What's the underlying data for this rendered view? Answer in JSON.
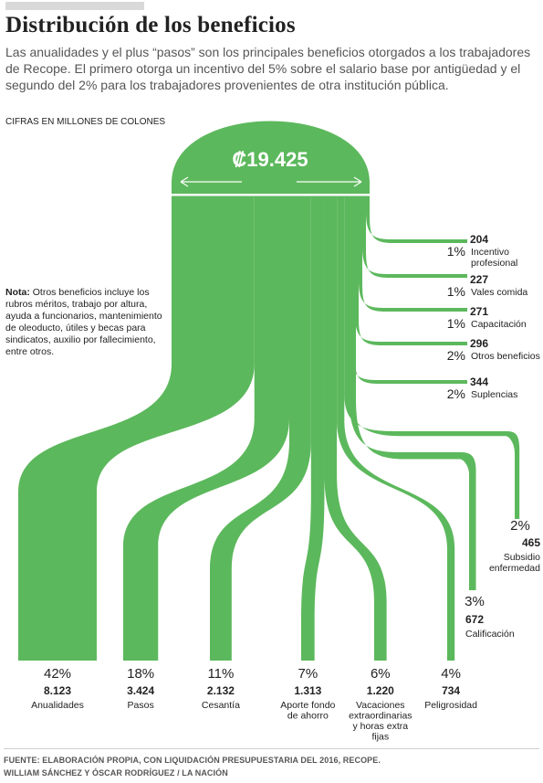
{
  "title": "Distribución de los beneficios",
  "subtitle": "Las anualidades y el plus “pasos”    son los principales beneficios otorgados a los trabajadores de Recope. El primero otorga un incentivo del 5% sobre el salario base por antigüedad y el segundo del 2% para los trabajadores provenientes de otra institución pública.",
  "units": "CIFRAS EN MILLONES DE COLONES",
  "note": {
    "label": "Nota:",
    "text": " Otros beneficios incluye los rubros méritos, trabajo por altura, ayuda a funcionarios, mantenimiento de oleoducto, útiles y becas para sindicatos, auxilio por fallecimiento, entre otros."
  },
  "source": {
    "line1": "FUENTE: ELABORACIÓN PROPIA, CON LIQUIDACIÓN PRESUPUESTARIA DEL 2016, RECOPE.",
    "line2": "WILLIAM SÁNCHEZ Y ÓSCAR RODRÍGUEZ / LA NACIÓN"
  },
  "colors": {
    "flow": "#5cb85c",
    "text": "#222222",
    "muted": "#555555"
  },
  "chart_data": {
    "type": "sankey",
    "total": {
      "value": 19425,
      "label": "₡19.425"
    },
    "bottom_items": [
      {
        "name": "Anualidades",
        "value": 8123,
        "value_label": "8.123",
        "pct": "42%"
      },
      {
        "name": "Pasos",
        "value": 3424,
        "value_label": "3.424",
        "pct": "18%"
      },
      {
        "name": "Cesantía",
        "value": 2132,
        "value_label": "2.132",
        "pct": "11%"
      },
      {
        "name": "Aporte fondo de ahorro",
        "value": 1313,
        "value_label": "1.313",
        "pct": "7%"
      },
      {
        "name": "Vacaciones extraordinarias y horas extra fijas",
        "value": 1220,
        "value_label": "1.220",
        "pct": "6%"
      },
      {
        "name": "Peligrosidad",
        "value": 734,
        "value_label": "734",
        "pct": "4%"
      }
    ],
    "right_items": [
      {
        "name": "Incentivo profesional",
        "value": 204,
        "value_label": "204",
        "pct": "1%"
      },
      {
        "name": "Vales comida",
        "value": 227,
        "value_label": "227",
        "pct": "1%"
      },
      {
        "name": "Capacitación",
        "value": 271,
        "value_label": "271",
        "pct": "1%"
      },
      {
        "name": "Otros beneficios",
        "value": 296,
        "value_label": "296",
        "pct": "2%"
      },
      {
        "name": "Suplencias",
        "value": 344,
        "value_label": "344",
        "pct": "2%"
      }
    ],
    "hook_items": [
      {
        "name": "Subsidio enfermedad",
        "value": 465,
        "value_label": "465",
        "pct": "2%"
      },
      {
        "name": "Calificación",
        "value": 672,
        "value_label": "672",
        "pct": "3%"
      }
    ]
  }
}
